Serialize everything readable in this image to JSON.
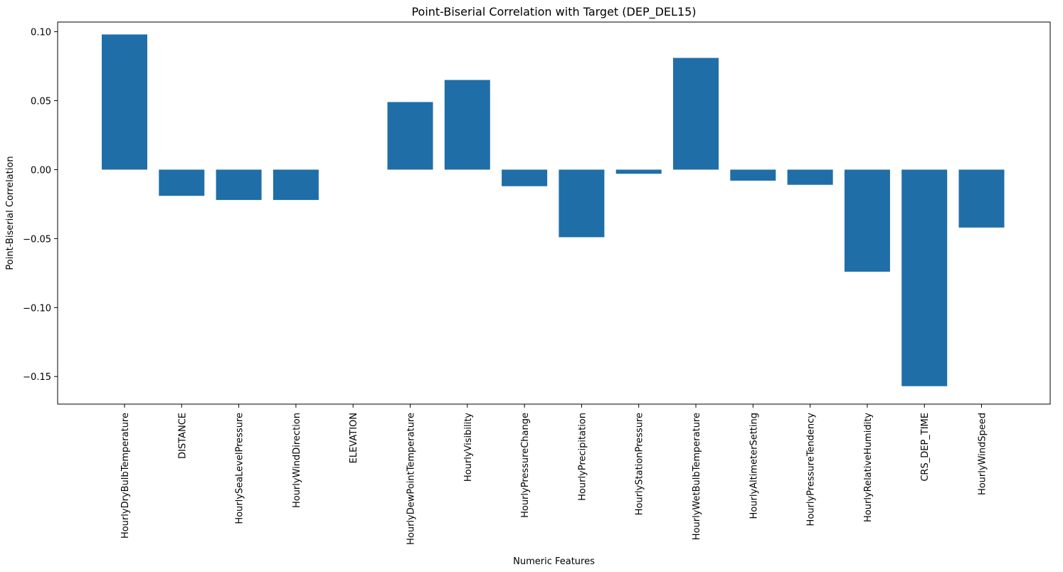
{
  "chart_data": {
    "type": "bar",
    "title": "Point-Biserial Correlation with Target (DEP_DEL15)",
    "xlabel": "Numeric Features",
    "ylabel": "Point-Biserial Correlation",
    "categories": [
      "HourlyDryBulbTemperature",
      "DISTANCE",
      "HourlySeaLevelPressure",
      "HourlyWindDirection",
      "ELEVATION",
      "HourlyDewPointTemperature",
      "HourlyVisibility",
      "HourlyPressureChange",
      "HourlyPrecipitation",
      "HourlyStationPressure",
      "HourlyWetBulbTemperature",
      "HourlyAltimeterSetting",
      "HourlyPressureTendency",
      "HourlyRelativeHumidity",
      "CRS_DEP_TIME",
      "HourlyWindSpeed"
    ],
    "values": [
      0.098,
      -0.019,
      -0.022,
      -0.022,
      0.0,
      0.049,
      0.065,
      -0.012,
      -0.049,
      -0.003,
      0.081,
      -0.008,
      -0.011,
      -0.074,
      -0.157,
      -0.042
    ],
    "ylim": [
      -0.17,
      0.107
    ],
    "yticks": [
      0.1,
      0.05,
      0.0,
      -0.05,
      -0.1,
      -0.15
    ],
    "ytick_labels": [
      "0.10",
      "0.05",
      "0.00",
      "−0.05",
      "−0.10",
      "−0.15"
    ],
    "bar_color": "#1f6ea8",
    "grid": false,
    "legend": "none"
  }
}
